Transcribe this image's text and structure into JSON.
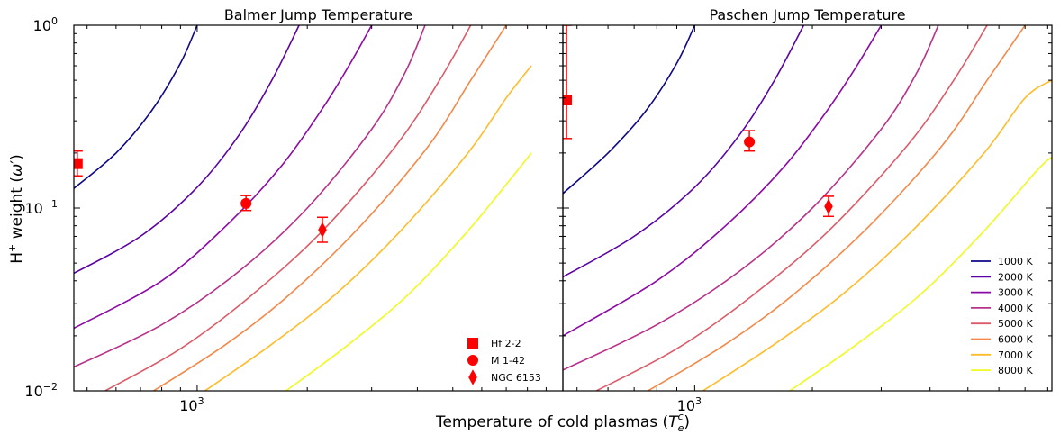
{
  "y_label_main": "H",
  "y_label_sup": "+",
  "y_label_rest": " weight (",
  "y_label_omega": "ω",
  "y_label_prime": "′",
  "y_label_close": ")",
  "x_label_main": "Temperature of cold plasmas (",
  "x_label_T": "T",
  "x_label_sub": "e",
  "x_label_sup": "c",
  "x_label_close": ")",
  "chart_data": [
    {
      "type": "line",
      "title": "Balmer Jump Temperature",
      "xscale": "log",
      "yscale": "log",
      "xlim": [
        460,
        10000
      ],
      "ylim": [
        0.01,
        1.0
      ],
      "x_ticks": [
        {
          "value": 1000,
          "base": "10",
          "exp": "3"
        }
      ],
      "y_ticks": [
        {
          "value": 1.0,
          "label": "10",
          "exp": "0"
        },
        {
          "value": 0.1,
          "label": "10",
          "exp": "−1"
        },
        {
          "value": 0.01,
          "label": "10",
          "exp": "−2"
        }
      ],
      "series": [
        {
          "name": "1000 K",
          "color": "#0d0887",
          "x": [
            460,
            600,
            750,
            900,
            1000
          ],
          "y": [
            0.128,
            0.2,
            0.34,
            0.62,
            1.0
          ]
        },
        {
          "name": "2000 K",
          "color": "#5a02a3",
          "x": [
            460,
            700,
            1000,
            1300,
            1600,
            1900
          ],
          "y": [
            0.044,
            0.07,
            0.13,
            0.25,
            0.5,
            1.0
          ]
        },
        {
          "name": "3000 K",
          "color": "#8b0aa5",
          "x": [
            460,
            800,
            1200,
            1700,
            2200,
            2600,
            3000
          ],
          "y": [
            0.022,
            0.04,
            0.08,
            0.17,
            0.35,
            0.6,
            1.0
          ]
        },
        {
          "name": "4000 K",
          "color": "#b83289",
          "x": [
            460,
            800,
            1300,
            2000,
            3000,
            3700,
            4200
          ],
          "y": [
            0.0135,
            0.023,
            0.045,
            0.1,
            0.27,
            0.55,
            1.0
          ]
        },
        {
          "name": "5000 K",
          "color": "#db5c68",
          "x": [
            560,
            900,
            1400,
            2200,
            3500,
            4600,
            5600
          ],
          "y": [
            0.01,
            0.017,
            0.033,
            0.075,
            0.22,
            0.5,
            1.0
          ]
        },
        {
          "name": "6000 K",
          "color": "#f48849",
          "x": [
            760,
            1200,
            1800,
            2800,
            4300,
            5600,
            7000
          ],
          "y": [
            0.01,
            0.018,
            0.034,
            0.08,
            0.22,
            0.5,
            1.0
          ]
        },
        {
          "name": "7000 K",
          "color": "#febc2a",
          "x": [
            1050,
            1600,
            2400,
            3600,
            5500,
            7000,
            8200
          ],
          "y": [
            0.01,
            0.018,
            0.034,
            0.075,
            0.2,
            0.4,
            0.6
          ]
        },
        {
          "name": "8000 K",
          "color": "#f0f921",
          "x": [
            1750,
            2600,
            3800,
            5500,
            7500,
            8200
          ],
          "y": [
            0.01,
            0.018,
            0.034,
            0.075,
            0.16,
            0.2
          ]
        }
      ],
      "points": [
        {
          "name": "Hf 2-2",
          "marker": "square",
          "color": "#ff0000",
          "x": 470,
          "y": 0.175,
          "err_low": 0.15,
          "err_high": 0.205
        },
        {
          "name": "M 1-42",
          "marker": "circle",
          "color": "#ff0000",
          "x": 1360,
          "y": 0.106,
          "err_low": 0.097,
          "err_high": 0.117
        },
        {
          "name": "NGC 6153",
          "marker": "diamond",
          "color": "#ff0000",
          "x": 2200,
          "y": 0.076,
          "err_low": 0.065,
          "err_high": 0.089
        }
      ],
      "legend": {
        "placement": "lower-right",
        "entries": [
          {
            "label": "Hf 2-2",
            "marker": "square"
          },
          {
            "label": "M 1-42",
            "marker": "circle"
          },
          {
            "label": "NGC 6153",
            "marker": "diamond"
          }
        ]
      }
    },
    {
      "type": "line",
      "title": "Paschen Jump Temperature",
      "xscale": "log",
      "yscale": "log",
      "xlim": [
        460,
        8200
      ],
      "ylim": [
        0.01,
        1.0
      ],
      "x_ticks": [
        {
          "value": 1000,
          "base": "10",
          "exp": "3"
        }
      ],
      "series": [
        {
          "name": "1000 K",
          "color": "#0d0887",
          "x": [
            460,
            600,
            750,
            900,
            1000
          ],
          "y": [
            0.12,
            0.2,
            0.34,
            0.62,
            1.0
          ]
        },
        {
          "name": "2000 K",
          "color": "#5a02a3",
          "x": [
            460,
            700,
            1000,
            1300,
            1600,
            1900
          ],
          "y": [
            0.042,
            0.07,
            0.13,
            0.25,
            0.5,
            1.0
          ]
        },
        {
          "name": "3000 K",
          "color": "#8b0aa5",
          "x": [
            460,
            800,
            1200,
            1700,
            2200,
            2600,
            3000
          ],
          "y": [
            0.02,
            0.04,
            0.08,
            0.17,
            0.35,
            0.6,
            1.0
          ]
        },
        {
          "name": "4000 K",
          "color": "#b83289",
          "x": [
            460,
            800,
            1300,
            2000,
            3000,
            3700,
            4200
          ],
          "y": [
            0.013,
            0.023,
            0.045,
            0.1,
            0.27,
            0.55,
            1.0
          ]
        },
        {
          "name": "5000 K",
          "color": "#db5c68",
          "x": [
            560,
            900,
            1400,
            2200,
            3500,
            4600,
            5600
          ],
          "y": [
            0.01,
            0.017,
            0.033,
            0.075,
            0.22,
            0.5,
            1.0
          ]
        },
        {
          "name": "6000 K",
          "color": "#f48849",
          "x": [
            760,
            1200,
            1800,
            2800,
            4300,
            5600,
            7000
          ],
          "y": [
            0.01,
            0.018,
            0.034,
            0.08,
            0.22,
            0.5,
            1.0
          ]
        },
        {
          "name": "7000 K",
          "color": "#febc2a",
          "x": [
            1050,
            1600,
            2400,
            3600,
            5500,
            7000,
            8200
          ],
          "y": [
            0.01,
            0.018,
            0.034,
            0.075,
            0.2,
            0.4,
            0.5
          ]
        },
        {
          "name": "8000 K",
          "color": "#f0f921",
          "x": [
            1750,
            2600,
            3800,
            5500,
            7500,
            8200
          ],
          "y": [
            0.01,
            0.018,
            0.034,
            0.075,
            0.16,
            0.19
          ]
        }
      ],
      "points": [
        {
          "name": "Hf 2-2",
          "marker": "square",
          "color": "#ff0000",
          "x": 470,
          "y": 0.39,
          "err_low": 0.24,
          "err_high": 1.0
        },
        {
          "name": "M 1-42",
          "marker": "circle",
          "color": "#ff0000",
          "x": 1380,
          "y": 0.23,
          "err_low": 0.205,
          "err_high": 0.265
        },
        {
          "name": "NGC 6153",
          "marker": "diamond",
          "color": "#ff0000",
          "x": 2200,
          "y": 0.102,
          "err_low": 0.09,
          "err_high": 0.116
        }
      ],
      "legend": {
        "placement": "lower-right",
        "entries": [
          {
            "label": "1000 K",
            "color": "#0d0887"
          },
          {
            "label": "2000 K",
            "color": "#5a02a3"
          },
          {
            "label": "3000 K",
            "color": "#8b0aa5"
          },
          {
            "label": "4000 K",
            "color": "#b83289"
          },
          {
            "label": "5000 K",
            "color": "#db5c68"
          },
          {
            "label": "6000 K",
            "color": "#f48849"
          },
          {
            "label": "7000 K",
            "color": "#febc2a"
          },
          {
            "label": "8000 K",
            "color": "#f0f921"
          }
        ]
      }
    }
  ]
}
